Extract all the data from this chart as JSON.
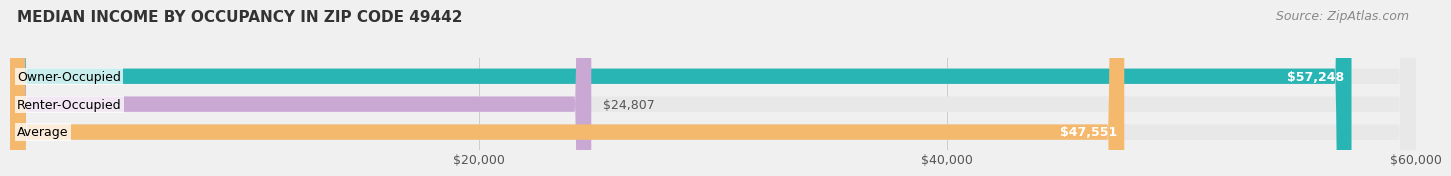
{
  "title": "MEDIAN INCOME BY OCCUPANCY IN ZIP CODE 49442",
  "source": "Source: ZipAtlas.com",
  "categories": [
    "Owner-Occupied",
    "Renter-Occupied",
    "Average"
  ],
  "values": [
    57248,
    24807,
    47551
  ],
  "bar_colors": [
    "#2ab5b5",
    "#c9a8d4",
    "#f5b96e"
  ],
  "bar_labels": [
    "$57,248",
    "$24,807",
    "$47,551"
  ],
  "label_inside": [
    true,
    false,
    true
  ],
  "xlim": [
    0,
    60000
  ],
  "xticks": [
    0,
    20000,
    40000,
    60000
  ],
  "xtick_labels": [
    "$20,000",
    "$40,000",
    "$60,000"
  ],
  "background_color": "#f0f0f0",
  "bar_bg_color": "#e8e8e8",
  "title_fontsize": 11,
  "source_fontsize": 9,
  "label_fontsize": 9,
  "tick_fontsize": 9,
  "bar_height": 0.55
}
